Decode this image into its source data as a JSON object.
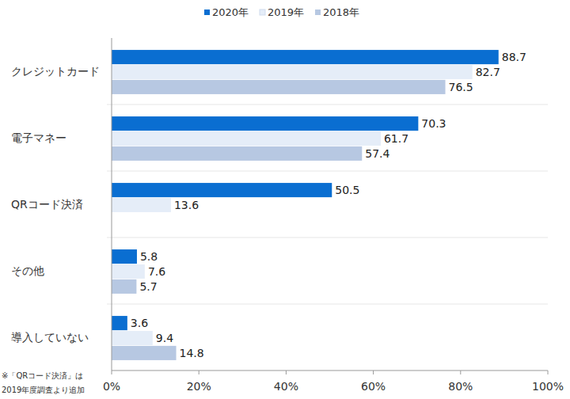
{
  "chart_data": {
    "type": "bar",
    "orientation": "horizontal",
    "categories": [
      "クレジットカード",
      "電子マネー",
      "QRコード決済",
      "その他",
      "導入していない"
    ],
    "series": [
      {
        "name": "2020年",
        "color": "#0a6ed1",
        "values": [
          88.7,
          70.3,
          50.5,
          5.8,
          3.6
        ]
      },
      {
        "name": "2019年",
        "color": "#e5edf8",
        "values": [
          82.7,
          61.7,
          13.6,
          7.6,
          9.4
        ]
      },
      {
        "name": "2018年",
        "color": "#b7c8e2",
        "values": [
          76.5,
          57.4,
          null,
          5.7,
          14.8
        ]
      }
    ],
    "xlim": [
      0,
      100
    ],
    "xticks": [
      {
        "value": 0,
        "label": "0%"
      },
      {
        "value": 20,
        "label": "20%"
      },
      {
        "value": 40,
        "label": "40%"
      },
      {
        "value": 60,
        "label": "60%"
      },
      {
        "value": 80,
        "label": "80%"
      },
      {
        "value": 100,
        "label": "100%"
      }
    ],
    "grid": false,
    "legend": "top",
    "data_labels": true,
    "annotations": [
      "※「QRコード決済」は",
      "2019年度調査より追加"
    ]
  }
}
